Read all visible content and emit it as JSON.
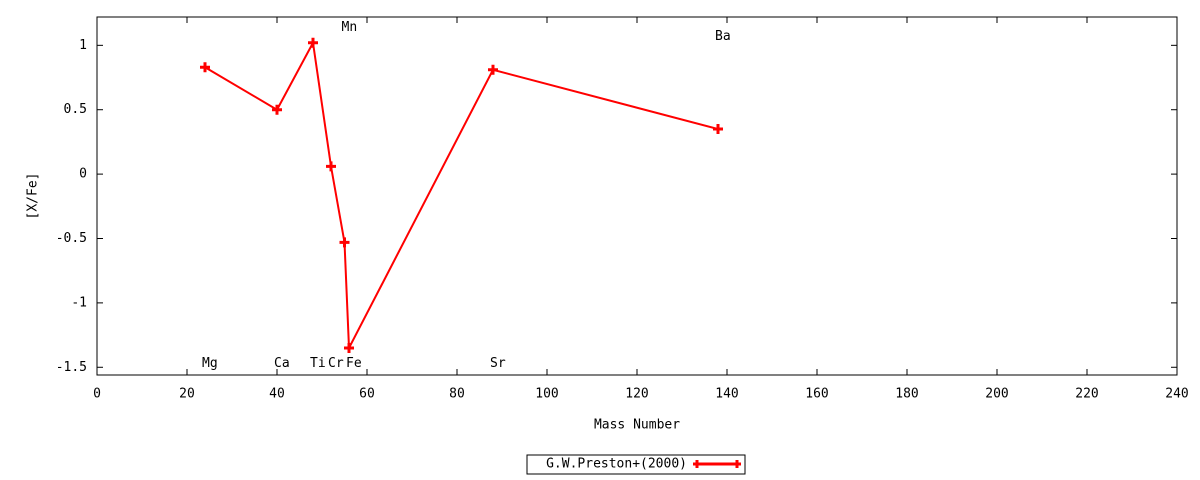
{
  "chart_data": {
    "type": "line",
    "xlabel": "Mass Number",
    "ylabel": "[X/Fe]",
    "xlim": [
      0,
      240
    ],
    "ylim": [
      -1.56,
      1.22
    ],
    "xticks": [
      0,
      20,
      40,
      60,
      80,
      100,
      120,
      140,
      160,
      180,
      200,
      220,
      240
    ],
    "yticks": [
      -1.5,
      -1,
      -0.5,
      0,
      0.5,
      1
    ],
    "legend": "bottom",
    "series": [
      {
        "name": "G.W.Preston+(2000)",
        "color": "#ff0000",
        "x": [
          24,
          40,
          48,
          52,
          55,
          56,
          88,
          138
        ],
        "values": [
          0.83,
          0.5,
          1.02,
          0.06,
          -0.53,
          -1.35,
          0.81,
          0.35
        ]
      }
    ],
    "annotations": [
      {
        "text": "Mg",
        "x": 24,
        "y": -1.47
      },
      {
        "text": "Ca",
        "x": 40,
        "y": -1.47
      },
      {
        "text": "Ti",
        "x": 48,
        "y": -1.47
      },
      {
        "text": "Cr",
        "x": 52,
        "y": -1.47
      },
      {
        "text": "Mn",
        "x": 55,
        "y": 1.14
      },
      {
        "text": "Fe",
        "x": 56,
        "y": -1.47
      },
      {
        "text": "Sr",
        "x": 88,
        "y": -1.47
      },
      {
        "text": "Ba",
        "x": 138,
        "y": 1.07
      }
    ]
  }
}
